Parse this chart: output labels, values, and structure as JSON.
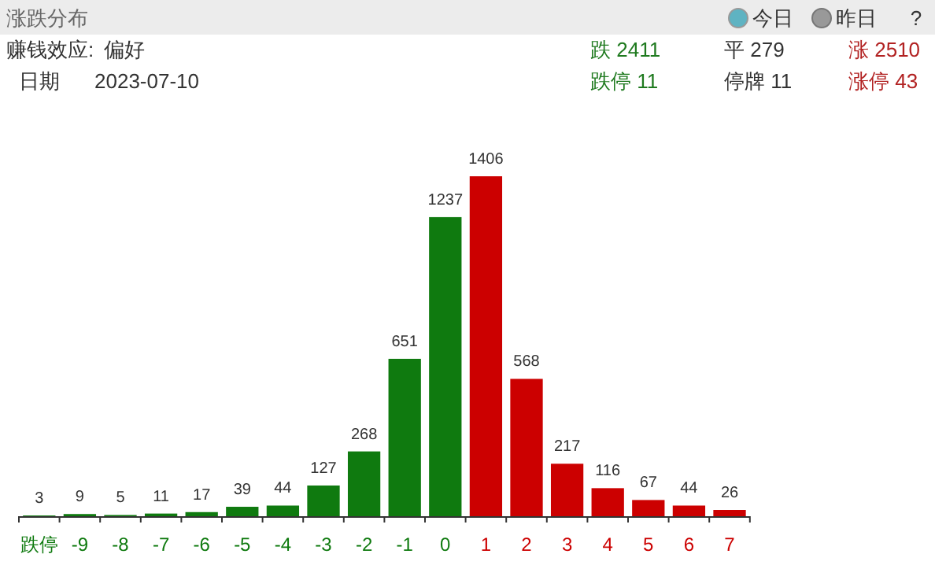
{
  "chart_data": {
    "type": "bar",
    "title": "涨跌分布",
    "annotations": [
      "今日",
      "昨日",
      "?",
      "赚钱效应:",
      "偏好",
      "日期",
      "2023-07-10",
      "跌 2411",
      "平 279",
      "涨 2510",
      "跌停 11",
      "停牌 11",
      "涨停 43"
    ],
    "categories": [
      "跌停",
      "-9",
      "-8",
      "-7",
      "-6",
      "-5",
      "-4",
      "-3",
      "-2",
      "-1",
      "0",
      "1",
      "2",
      "3",
      "4",
      "5",
      "6",
      "7"
    ],
    "values": [
      3,
      9,
      5,
      11,
      17,
      39,
      44,
      127,
      268,
      651,
      1237,
      1406,
      568,
      217,
      116,
      67,
      44,
      26
    ],
    "colors": [
      "#0f7a0f",
      "#0f7a0f",
      "#0f7a0f",
      "#0f7a0f",
      "#0f7a0f",
      "#0f7a0f",
      "#0f7a0f",
      "#0f7a0f",
      "#0f7a0f",
      "#0f7a0f",
      "#0f7a0f",
      "#cc0000",
      "#cc0000",
      "#cc0000",
      "#cc0000",
      "#cc0000",
      "#cc0000",
      "#cc0000"
    ],
    "data_labels": true
  }
}
